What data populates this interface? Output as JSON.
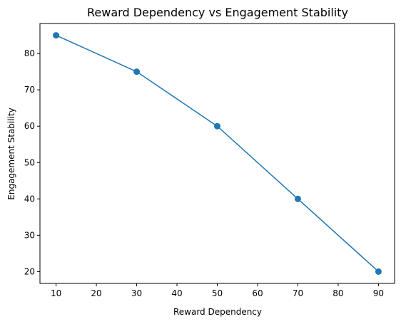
{
  "chart_data": {
    "type": "line",
    "title": "Reward Dependency vs Engagement Stability",
    "xlabel": "Reward Dependency",
    "ylabel": "Engagement Stability",
    "xlim": [
      6.0,
      94.0
    ],
    "ylim": [
      16.75,
      88.25
    ],
    "xticks": [
      10,
      20,
      30,
      40,
      50,
      60,
      70,
      80,
      90
    ],
    "yticks": [
      20,
      30,
      40,
      50,
      60,
      70,
      80
    ],
    "grid": false,
    "series": [
      {
        "x": [
          10,
          30,
          50,
          70,
          90
        ],
        "y": [
          85,
          75,
          60,
          40,
          20
        ],
        "color": "#1f77b4",
        "marker": "circle"
      }
    ]
  }
}
